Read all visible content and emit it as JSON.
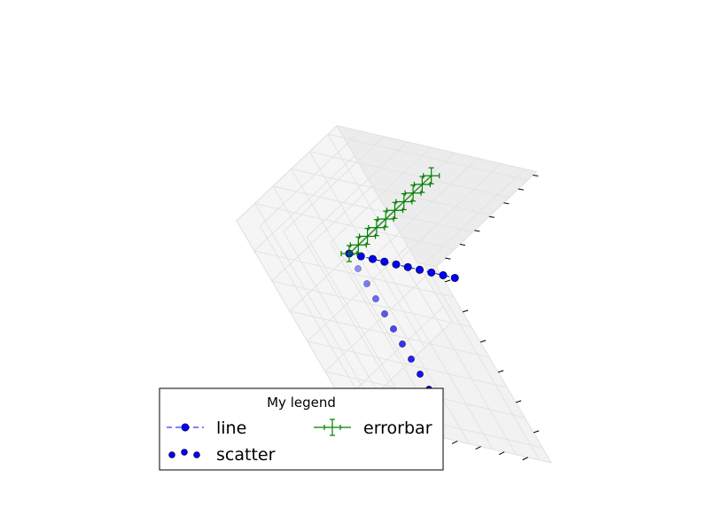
{
  "chart_data": {
    "type": "scatter",
    "projection": "3d",
    "title": "",
    "grid": true,
    "axis_tick_labels_visible": false,
    "legend": {
      "title": "My legend",
      "placement": "lower-left",
      "columns": 2,
      "entries": [
        {
          "name": "line",
          "series": "line"
        },
        {
          "name": "errorbar",
          "series": "errorbar"
        },
        {
          "name": "scatter",
          "series": "scatter"
        }
      ]
    },
    "series": [
      {
        "name": "line",
        "kind": "line",
        "style": "dashed",
        "marker": "circle",
        "color": "#0000ff",
        "points": [
          {
            "x": 0,
            "y": 0,
            "z": 0
          },
          {
            "x": 1,
            "y": 0,
            "z": 0
          },
          {
            "x": 2,
            "y": 0,
            "z": 0
          },
          {
            "x": 3,
            "y": 0,
            "z": 0
          },
          {
            "x": 4,
            "y": 0,
            "z": 0
          },
          {
            "x": 5,
            "y": 0,
            "z": 0
          },
          {
            "x": 6,
            "y": 0,
            "z": 0
          },
          {
            "x": 7,
            "y": 0,
            "z": 0
          },
          {
            "x": 8,
            "y": 0,
            "z": 0
          },
          {
            "x": 9,
            "y": 0,
            "z": 0
          }
        ]
      },
      {
        "name": "scatter",
        "kind": "scatter",
        "marker": "circle",
        "color": "#0000ff",
        "points": [
          {
            "x": 0,
            "y": 0,
            "z": 0
          },
          {
            "x": 0,
            "y": 1,
            "z": 0
          },
          {
            "x": 0,
            "y": 2,
            "z": 0
          },
          {
            "x": 0,
            "y": 3,
            "z": 0
          },
          {
            "x": 0,
            "y": 4,
            "z": 0
          },
          {
            "x": 0,
            "y": 5,
            "z": 0
          },
          {
            "x": 0,
            "y": 6,
            "z": 0
          },
          {
            "x": 0,
            "y": 7,
            "z": 0
          },
          {
            "x": 0,
            "y": 8,
            "z": 0
          },
          {
            "x": 0,
            "y": 9,
            "z": 0
          }
        ]
      },
      {
        "name": "errorbar",
        "kind": "errorbar",
        "color": "#008000",
        "points": [
          {
            "x": 0,
            "y": 0,
            "z": 0
          },
          {
            "x": 0,
            "y": 0,
            "z": 1
          },
          {
            "x": 0,
            "y": 0,
            "z": 2
          },
          {
            "x": 0,
            "y": 0,
            "z": 3
          },
          {
            "x": 0,
            "y": 0,
            "z": 4
          },
          {
            "x": 0,
            "y": 0,
            "z": 5
          },
          {
            "x": 0,
            "y": 0,
            "z": 6
          },
          {
            "x": 0,
            "y": 0,
            "z": 7
          },
          {
            "x": 0,
            "y": 0,
            "z": 8
          },
          {
            "x": 0,
            "y": 0,
            "z": 9
          }
        ]
      }
    ]
  }
}
